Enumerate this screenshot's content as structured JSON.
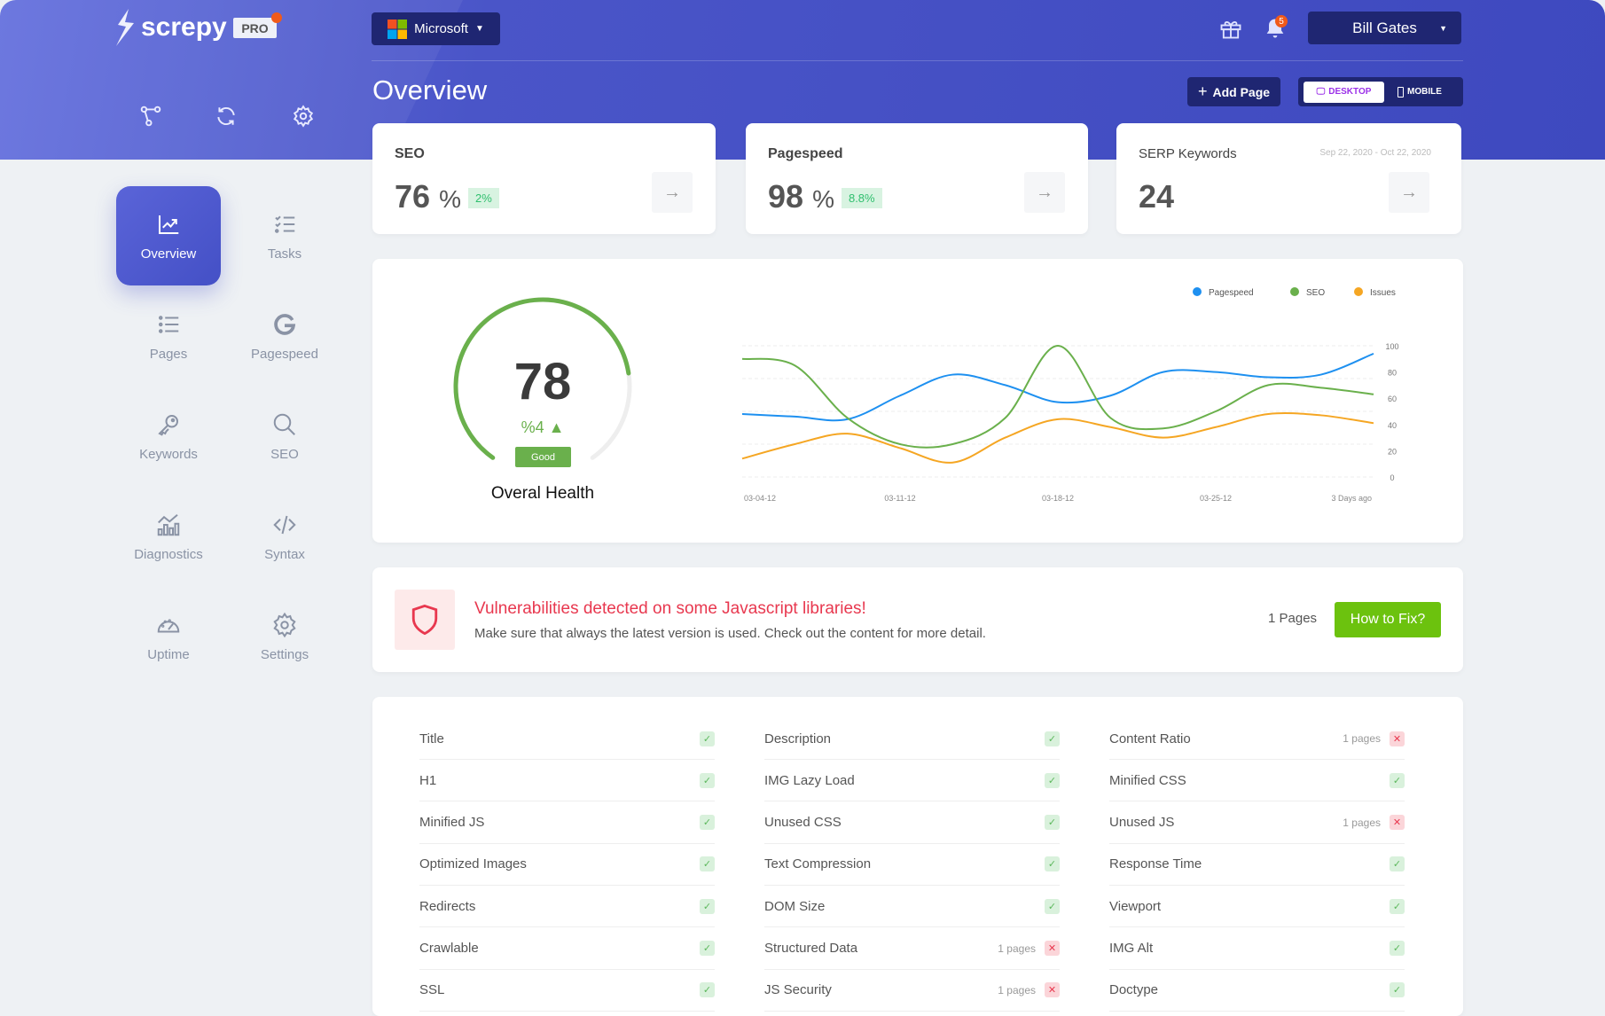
{
  "brand": {
    "name": "screpy",
    "tier": "PRO"
  },
  "header": {
    "project": "Microsoft",
    "user": "Bill Gates",
    "notifications": "5",
    "title": "Overview",
    "add_page": "Add Page",
    "view_desktop": "DESKTOP",
    "view_mobile": "MOBILE",
    "active_view": "desktop"
  },
  "sidebar": {
    "items": [
      {
        "label": "Overview",
        "icon": "chart-line-icon",
        "active": true
      },
      {
        "label": "Tasks",
        "icon": "tasks-icon"
      },
      {
        "label": "Pages",
        "icon": "list-icon"
      },
      {
        "label": "Pagespeed",
        "icon": "google-icon"
      },
      {
        "label": "Keywords",
        "icon": "key-icon"
      },
      {
        "label": "SEO",
        "icon": "search-icon"
      },
      {
        "label": "Diagnostics",
        "icon": "diagnostics-icon"
      },
      {
        "label": "Syntax",
        "icon": "code-icon"
      },
      {
        "label": "Uptime",
        "icon": "speedometer-icon"
      },
      {
        "label": "Settings",
        "icon": "gear-icon"
      }
    ]
  },
  "stats": [
    {
      "label": "SEO",
      "value": "76",
      "unit": "%",
      "change": "2%"
    },
    {
      "label": "Pagespeed",
      "value": "98",
      "unit": "%",
      "change": "8.8%"
    },
    {
      "label": "SERP Keywords",
      "value": "24",
      "date_range": "Sep 22, 2020 - Oct 22, 2020"
    }
  ],
  "health": {
    "score": 78,
    "change": "%4 ▲",
    "status": "Good",
    "label": "Overal Health"
  },
  "chart_data": {
    "type": "line",
    "x_ticks": [
      "03-04-12",
      "03-11-12",
      "03-18-12",
      "03-25-12",
      "3 Days ago"
    ],
    "y_ticks": [
      "0",
      "20",
      "40",
      "60",
      "80",
      "100"
    ],
    "ylim": [
      0,
      100
    ],
    "grid": true,
    "legend_position": "top-right",
    "series": [
      {
        "name": "Pagespeed",
        "color": "#1e90f0",
        "values": [
          48,
          46,
          44,
          62,
          78,
          70,
          57,
          62,
          80,
          80,
          76,
          78,
          94
        ]
      },
      {
        "name": "SEO",
        "color": "#6ab04c",
        "values": [
          90,
          85,
          45,
          25,
          25,
          45,
          100,
          45,
          37,
          50,
          70,
          68,
          63
        ]
      },
      {
        "name": "Issues",
        "color": "#f5a623",
        "values": [
          14,
          25,
          33,
          22,
          11,
          30,
          44,
          38,
          30,
          38,
          48,
          47,
          41
        ]
      }
    ]
  },
  "alert": {
    "title": "Vulnerabilities detected on some Javascript libraries!",
    "message": "Make sure that always the latest version is used. Check out the content for more detail.",
    "pages": "1 Pages",
    "action": "How to Fix?"
  },
  "checks": [
    [
      {
        "label": "Title",
        "ok": true
      },
      {
        "label": "H1",
        "ok": true
      },
      {
        "label": "Minified JS",
        "ok": true
      },
      {
        "label": "Optimized Images",
        "ok": true
      },
      {
        "label": "Redirects",
        "ok": true
      },
      {
        "label": "Crawlable",
        "ok": true
      },
      {
        "label": "SSL",
        "ok": true
      }
    ],
    [
      {
        "label": "Description",
        "ok": true
      },
      {
        "label": "IMG Lazy Load",
        "ok": true
      },
      {
        "label": "Unused CSS",
        "ok": true
      },
      {
        "label": "Text Compression",
        "ok": true
      },
      {
        "label": "DOM Size",
        "ok": true
      },
      {
        "label": "Structured Data",
        "ok": false,
        "pages": "1 pages"
      },
      {
        "label": "JS Security",
        "ok": false,
        "pages": "1 pages"
      }
    ],
    [
      {
        "label": "Content Ratio",
        "ok": false,
        "pages": "1 pages"
      },
      {
        "label": "Minified CSS",
        "ok": true
      },
      {
        "label": "Unused JS",
        "ok": false,
        "pages": "1 pages"
      },
      {
        "label": "Response Time",
        "ok": true
      },
      {
        "label": "Viewport",
        "ok": true
      },
      {
        "label": "IMG Alt",
        "ok": true
      },
      {
        "label": "Doctype",
        "ok": true
      }
    ]
  ]
}
